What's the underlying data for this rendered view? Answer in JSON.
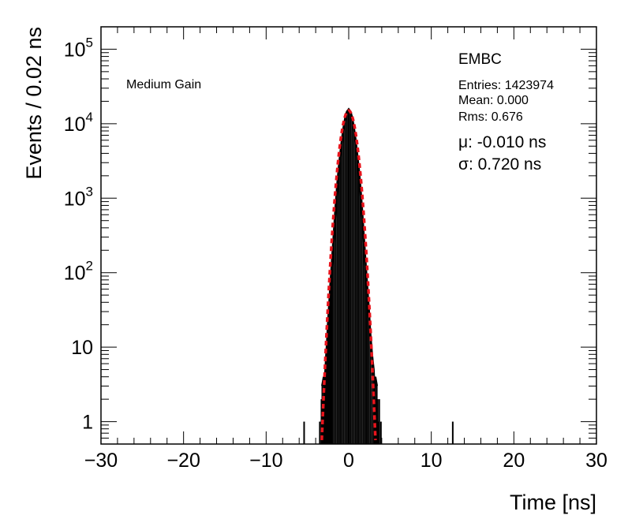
{
  "chart_data": {
    "type": "histogram",
    "xlabel": "Time [ns]",
    "ylabel": "Events / 0.02 ns",
    "xlim": [
      -30,
      30
    ],
    "ylim": [
      0.5,
      200000
    ],
    "yscale": "log",
    "x_ticks": [
      {
        "value": -30,
        "label": "−30"
      },
      {
        "value": -20,
        "label": "−20"
      },
      {
        "value": -10,
        "label": "−10"
      },
      {
        "value": 0,
        "label": "0"
      },
      {
        "value": 10,
        "label": "10"
      },
      {
        "value": 20,
        "label": "20"
      },
      {
        "value": 30,
        "label": "30"
      }
    ],
    "y_ticks": [
      {
        "value": 1,
        "base": "1",
        "exp": ""
      },
      {
        "value": 10,
        "base": "10",
        "exp": ""
      },
      {
        "value": 100,
        "base": "10",
        "exp": "2"
      },
      {
        "value": 1000,
        "base": "10",
        "exp": "3"
      },
      {
        "value": 10000,
        "base": "10",
        "exp": "4"
      },
      {
        "value": 100000,
        "base": "10",
        "exp": "5"
      }
    ],
    "detector": "EMBC",
    "gain": "Medium Gain",
    "stats": {
      "entries": "Entries: 1423974",
      "mean": "Mean: 0.000",
      "rms": "Rms: 0.676"
    },
    "fit": {
      "mu_text": "μ: -0.010 ns",
      "sigma_text": "σ: 0.720 ns",
      "mu": -0.01,
      "sigma": 0.72,
      "peak": 15000,
      "color": "#e8141c"
    },
    "series": [
      {
        "type": "histogram",
        "color": "#000000",
        "points": [
          [
            -5.4,
            1
          ],
          [
            -3.5,
            1
          ],
          [
            -3.3,
            2
          ],
          [
            -3.2,
            3
          ],
          [
            -3.1,
            2
          ],
          [
            -3.0,
            4
          ],
          [
            -2.9,
            3
          ],
          [
            -2.8,
            5
          ],
          [
            -2.7,
            8
          ],
          [
            -2.6,
            12
          ],
          [
            -2.5,
            20
          ],
          [
            -2.4,
            30
          ],
          [
            -2.3,
            45
          ],
          [
            -2.2,
            70
          ],
          [
            -2.1,
            100
          ],
          [
            -2.0,
            150
          ],
          [
            -1.8,
            320
          ],
          [
            -1.6,
            700
          ],
          [
            -1.4,
            1400
          ],
          [
            -1.2,
            2500
          ],
          [
            -1.0,
            4000
          ],
          [
            -0.8,
            6200
          ],
          [
            -0.6,
            9000
          ],
          [
            -0.4,
            12000
          ],
          [
            -0.2,
            14500
          ],
          [
            0.0,
            15500
          ],
          [
            0.2,
            14500
          ],
          [
            0.4,
            12000
          ],
          [
            0.6,
            9000
          ],
          [
            0.8,
            6200
          ],
          [
            1.0,
            4000
          ],
          [
            1.2,
            2500
          ],
          [
            1.4,
            1400
          ],
          [
            1.6,
            700
          ],
          [
            1.8,
            320
          ],
          [
            2.0,
            150
          ],
          [
            2.2,
            70
          ],
          [
            2.4,
            35
          ],
          [
            2.6,
            15
          ],
          [
            2.8,
            8
          ],
          [
            3.0,
            5
          ],
          [
            3.1,
            3
          ],
          [
            3.2,
            4
          ],
          [
            3.3,
            2
          ],
          [
            3.4,
            3
          ],
          [
            3.5,
            2
          ],
          [
            3.6,
            1
          ],
          [
            3.7,
            2
          ],
          [
            3.9,
            1
          ],
          [
            12.6,
            1
          ]
        ]
      }
    ]
  }
}
